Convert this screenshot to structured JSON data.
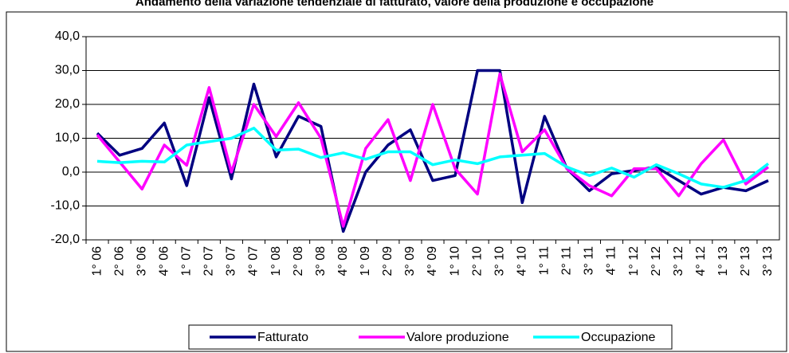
{
  "chart_data": {
    "type": "line",
    "title": "Andamento della variazione tendenziale di fatturato, valore della produzione e occupazione",
    "categories": [
      "1° 06",
      "2° 06",
      "3° 06",
      "4° 06",
      "1° 07",
      "2° 07",
      "3° 07",
      "4° 07",
      "1° 08",
      "2° 08",
      "3° 08",
      "4° 08",
      "1° 09",
      "2° 09",
      "3° 09",
      "4° 09",
      "1° 10",
      "2° 10",
      "3° 10",
      "4° 10",
      "1° 11",
      "2° 11",
      "3° 11",
      "4° 11",
      "1° 12",
      "2° 12",
      "3° 12",
      "4° 12",
      "1° 13",
      "2° 13",
      "3° 13"
    ],
    "series": [
      {
        "name": "Fatturato",
        "color": "#000080",
        "values": [
          11.5,
          5,
          7,
          14.5,
          -4,
          22,
          -2,
          26,
          4.5,
          16.5,
          13.5,
          -17.5,
          0,
          8,
          12.5,
          -2.5,
          -1,
          30,
          30,
          -9,
          16.5,
          1,
          -5.5,
          -0.5,
          0.5,
          1.5,
          -2.5,
          -6.5,
          -4.5,
          -5.5,
          -2.5
        ]
      },
      {
        "name": "Valore produzione",
        "color": "#ff00ff",
        "values": [
          11,
          3,
          -5,
          8,
          2,
          25,
          0,
          20,
          10.5,
          20.5,
          10,
          -16,
          7,
          15.5,
          -2.5,
          20,
          1,
          -6.5,
          29,
          6,
          12.5,
          1,
          -4,
          -7,
          1,
          1,
          -7,
          2.5,
          9.5,
          -3.5,
          1.5
        ]
      },
      {
        "name": "Occupazione",
        "color": "#00ffff",
        "values": [
          3.2,
          2.8,
          3.2,
          3,
          8,
          9,
          10,
          13,
          6.5,
          6.8,
          4.3,
          5.7,
          3.8,
          6,
          6,
          2.2,
          3.6,
          2.5,
          4.5,
          5,
          5.5,
          1.5,
          -1,
          1.2,
          -1.5,
          2.2,
          -0.5,
          -3.5,
          -4.5,
          -2.5,
          2.5
        ]
      }
    ],
    "ylim": [
      -20,
      40
    ],
    "yticks": [
      {
        "value": -20,
        "label": "-20,0"
      },
      {
        "value": -10,
        "label": "-10,0"
      },
      {
        "value": 0,
        "label": "0,0"
      },
      {
        "value": 10,
        "label": "10,0"
      },
      {
        "value": 20,
        "label": "20,0"
      },
      {
        "value": 30,
        "label": "30,0"
      },
      {
        "value": 40,
        "label": "40,0"
      }
    ],
    "grid": true,
    "legend": "bottom"
  }
}
